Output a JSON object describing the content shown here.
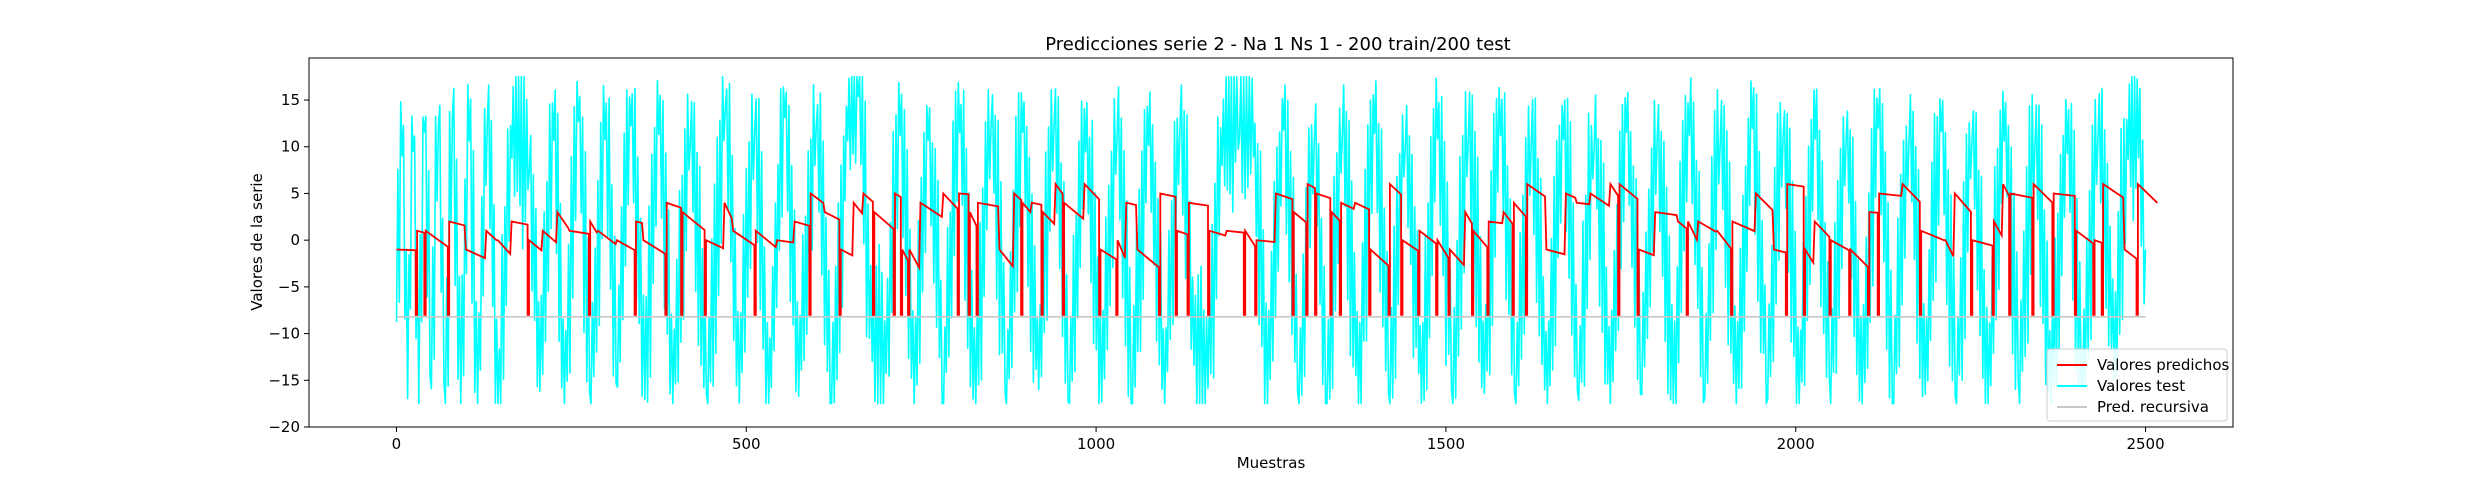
{
  "chart_data": {
    "type": "line",
    "title": "Predicciones serie 2 - Na 1 Ns 1 - 200 train/200 test",
    "xlabel": "Muestras",
    "ylabel": "Valores de la serie",
    "xlim": [
      -125,
      2625
    ],
    "ylim": [
      -20,
      19.5
    ],
    "xticks": [
      0,
      500,
      1000,
      1500,
      2000,
      2500
    ],
    "yticks": [
      -20,
      -15,
      -10,
      -5,
      0,
      5,
      10,
      15
    ],
    "grid": false,
    "legend_position": "lower right",
    "series": [
      {
        "name": "Valores predichos",
        "color": "#ff0000",
        "description_x_range": [
          0,
          2500
        ],
        "approx_value_range": [
          -8,
          6.2
        ],
        "levels": [
          6,
          5,
          4,
          3,
          2,
          1,
          0,
          -1
        ]
      },
      {
        "name": "Valores test",
        "color": "#00ffff",
        "description_x_range": [
          0,
          2500
        ],
        "approx_value_range": [
          -18,
          18
        ],
        "peak_max": 18,
        "peak_min": -18,
        "turning_points": [
          [
            0,
            -6
          ],
          [
            8,
            12
          ],
          [
            16,
            -14
          ],
          [
            24,
            13
          ],
          [
            32,
            -16
          ],
          [
            40,
            14
          ],
          [
            50,
            -13
          ],
          [
            60,
            15
          ],
          [
            70,
            -17
          ],
          [
            80,
            15
          ],
          [
            92,
            -15
          ],
          [
            104,
            14
          ],
          [
            116,
            -16
          ],
          [
            130,
            16
          ],
          [
            145,
            -18
          ],
          [
            165,
            11
          ],
          [
            190,
            10
          ],
          [
            205,
            -14
          ],
          [
            225,
            14
          ],
          [
            240,
            -16
          ],
          [
            260,
            15
          ],
          [
            278,
            -15
          ],
          [
            298,
            14
          ],
          [
            316,
            -13
          ],
          [
            335,
            15
          ],
          [
            355,
            -15
          ],
          [
            375,
            14
          ],
          [
            395,
            -15
          ],
          [
            420,
            13
          ],
          [
            445,
            -16
          ],
          [
            470,
            16
          ],
          [
            490,
            -15
          ],
          [
            512,
            14
          ],
          [
            532,
            -16
          ],
          [
            555,
            15
          ],
          [
            575,
            -14
          ],
          [
            600,
            14
          ],
          [
            622,
            -16
          ],
          [
            645,
            13
          ],
          [
            660,
            18
          ],
          [
            680,
            -10
          ],
          [
            700,
            -12
          ],
          [
            720,
            14
          ],
          [
            740,
            -16
          ],
          [
            760,
            13
          ],
          [
            782,
            -15
          ],
          [
            805,
            14
          ],
          [
            828,
            -16
          ],
          [
            850,
            15
          ],
          [
            872,
            -15
          ],
          [
            895,
            14
          ],
          [
            918,
            -14
          ],
          [
            940,
            15
          ],
          [
            962,
            -16
          ],
          [
            985,
            13
          ],
          [
            1008,
            -15
          ],
          [
            1030,
            14
          ],
          [
            1052,
            -15
          ],
          [
            1075,
            13
          ],
          [
            1098,
            -15
          ],
          [
            1120,
            14
          ],
          [
            1140,
            -10
          ],
          [
            1160,
            -14
          ],
          [
            1180,
            11
          ],
          [
            1205,
            14
          ],
          [
            1225,
            11
          ],
          [
            1245,
            -15
          ],
          [
            1268,
            14
          ],
          [
            1290,
            -15
          ],
          [
            1312,
            13
          ],
          [
            1330,
            -17
          ],
          [
            1352,
            14
          ],
          [
            1375,
            -15
          ],
          [
            1398,
            14
          ],
          [
            1420,
            -14
          ],
          [
            1442,
            13
          ],
          [
            1465,
            -15
          ],
          [
            1488,
            14
          ],
          [
            1510,
            -15
          ],
          [
            1532,
            13
          ],
          [
            1555,
            -14
          ],
          [
            1578,
            14
          ],
          [
            1600,
            -15
          ],
          [
            1622,
            13
          ],
          [
            1645,
            -16
          ],
          [
            1668,
            14
          ],
          [
            1690,
            -15
          ],
          [
            1712,
            13
          ],
          [
            1735,
            -15
          ],
          [
            1758,
            14
          ],
          [
            1780,
            -14
          ],
          [
            1802,
            13
          ],
          [
            1825,
            -15
          ],
          [
            1848,
            14
          ],
          [
            1870,
            -14
          ],
          [
            1892,
            13
          ],
          [
            1915,
            -15
          ],
          [
            1938,
            14
          ],
          [
            1960,
            -15
          ],
          [
            1982,
            13
          ],
          [
            2005,
            -15
          ],
          [
            2028,
            14
          ],
          [
            2050,
            -14
          ],
          [
            2072,
            13
          ],
          [
            2095,
            -15
          ],
          [
            2118,
            14
          ],
          [
            2140,
            -15
          ],
          [
            2162,
            13
          ],
          [
            2185,
            -14
          ],
          [
            2208,
            14
          ],
          [
            2230,
            -15
          ],
          [
            2252,
            13
          ],
          [
            2275,
            -15
          ],
          [
            2298,
            14
          ],
          [
            2320,
            -14
          ],
          [
            2342,
            13
          ],
          [
            2365,
            -15
          ],
          [
            2388,
            12
          ],
          [
            2410,
            -14
          ],
          [
            2432,
            13
          ],
          [
            2455,
            -12
          ],
          [
            2475,
            12
          ],
          [
            2490,
            11
          ],
          [
            2500,
            -1
          ]
        ]
      },
      {
        "name": "Pred. recursiva",
        "color": "#c8c8c8",
        "x": [
          0,
          2500
        ],
        "y": [
          -8.2,
          -8.2
        ]
      }
    ]
  }
}
